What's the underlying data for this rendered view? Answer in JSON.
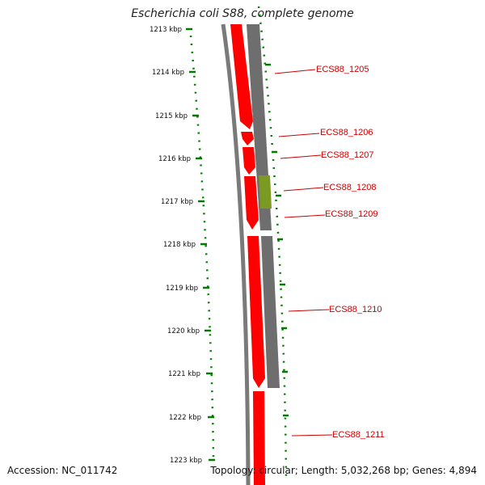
{
  "title": "Escherichia coli S88, complete genome",
  "accession_text": "Accession: NC_011742",
  "summary_text": "Topology: circular; Length: 5,032,268 bp; Genes: 4,894",
  "colors": {
    "forward_cds": "#ff0000",
    "reverse_cds": "#6e6e6e",
    "highlight": "#7a9a22",
    "ticks": "#007a00",
    "label": "#cc0000",
    "backbone": "#777777"
  },
  "scale": {
    "unit": "kbp",
    "ticks": [
      "1213 kbp",
      "1214 kbp",
      "1215 kbp",
      "1216 kbp",
      "1217 kbp",
      "1218 kbp",
      "1219 kbp",
      "1220 kbp",
      "1221 kbp",
      "1222 kbp",
      "1223 kbp"
    ]
  },
  "genes": [
    {
      "name": "ECS88_1205"
    },
    {
      "name": "ECS88_1206"
    },
    {
      "name": "ECS88_1207"
    },
    {
      "name": "ECS88_1208"
    },
    {
      "name": "ECS88_1209"
    },
    {
      "name": "ECS88_1210"
    },
    {
      "name": "ECS88_1211"
    }
  ]
}
